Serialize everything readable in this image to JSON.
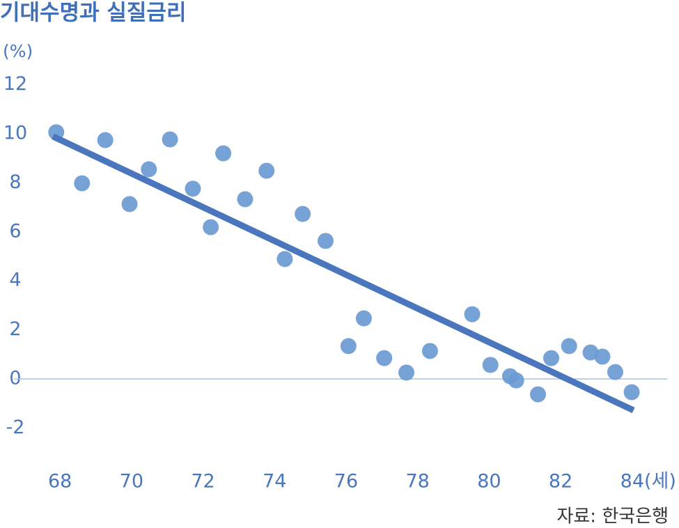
{
  "chart_data": {
    "type": "scatter",
    "title": "기대수명과 실질금리",
    "y_unit": "(%)",
    "source": "자료: 한국은행",
    "series": [
      {
        "color": "#6b9ad2",
        "x": [
          67.86,
          68.58,
          69.23,
          69.91,
          70.45,
          71.04,
          71.68,
          72.18,
          72.53,
          73.14,
          73.74,
          74.25,
          74.75,
          75.39,
          76.03,
          76.46,
          77.03,
          77.65,
          78.31,
          79.49,
          80.0,
          80.55,
          80.72,
          81.33,
          81.7,
          82.2,
          82.8,
          83.13,
          83.49,
          83.95
        ],
        "values": [
          10.06,
          7.98,
          9.74,
          7.13,
          8.55,
          9.77,
          7.76,
          6.19,
          9.2,
          7.33,
          8.49,
          4.89,
          6.73,
          5.63,
          1.34,
          2.47,
          0.85,
          0.26,
          1.14,
          2.64,
          0.57,
          0.11,
          -0.06,
          -0.63,
          0.85,
          1.34,
          1.08,
          0.91,
          0.28,
          -0.54
        ]
      }
    ],
    "trend": {
      "color": "#4a76be",
      "x": [
        67.77,
        84.0
      ],
      "values": [
        9.89,
        -1.28
      ]
    },
    "xlim": [
      67,
      85
    ],
    "xticks": [
      68,
      70,
      72,
      74,
      76,
      78,
      80,
      82,
      {
        "value": 84,
        "label": "84(세)"
      }
    ],
    "ylim": [
      -3,
      12.5
    ],
    "yticks": [
      -2,
      0,
      2,
      4,
      6,
      8,
      10,
      12
    ],
    "zero_line": true,
    "grid": false
  }
}
